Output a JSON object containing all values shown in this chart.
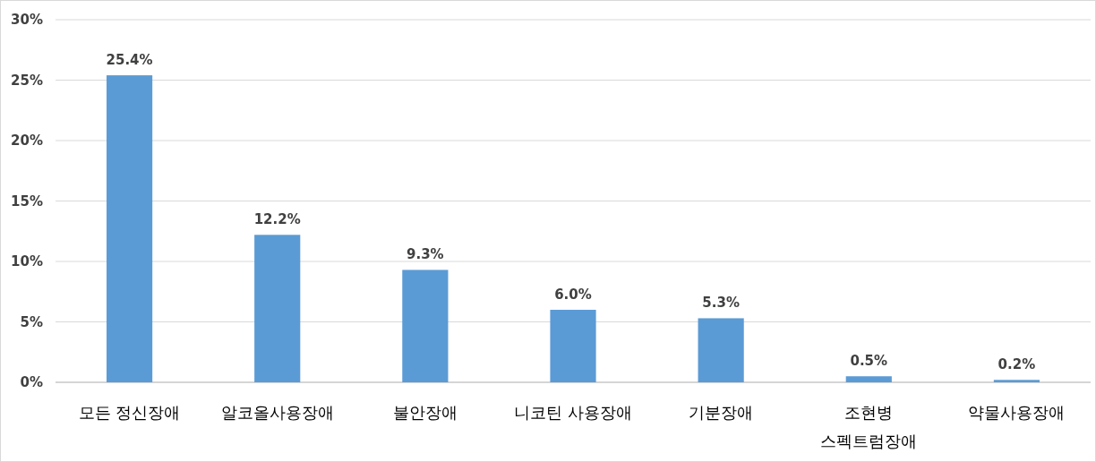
{
  "chart_data": {
    "type": "bar",
    "categories": [
      "모든 정신장애",
      "알코올사용장애",
      "불안장애",
      "니코틴 사용장애",
      "기분장애",
      "조현병\n스펙트럼장애",
      "약물사용장애"
    ],
    "values": [
      25.4,
      12.2,
      9.3,
      6.0,
      5.3,
      0.5,
      0.2
    ],
    "value_labels": [
      "25.4%",
      "12.2%",
      "9.3%",
      "6.0%",
      "5.3%",
      "0.5%",
      "0.2%"
    ],
    "color": "#5b9bd5",
    "ylim": [
      0,
      30
    ],
    "yticks": [
      {
        "value": 0,
        "label": "0%"
      },
      {
        "value": 5,
        "label": "5%"
      },
      {
        "value": 10,
        "label": "10%"
      },
      {
        "value": 15,
        "label": "15%"
      },
      {
        "value": 20,
        "label": "20%"
      },
      {
        "value": 25,
        "label": "25%"
      },
      {
        "value": 30,
        "label": "30%"
      }
    ],
    "grid": "y"
  }
}
